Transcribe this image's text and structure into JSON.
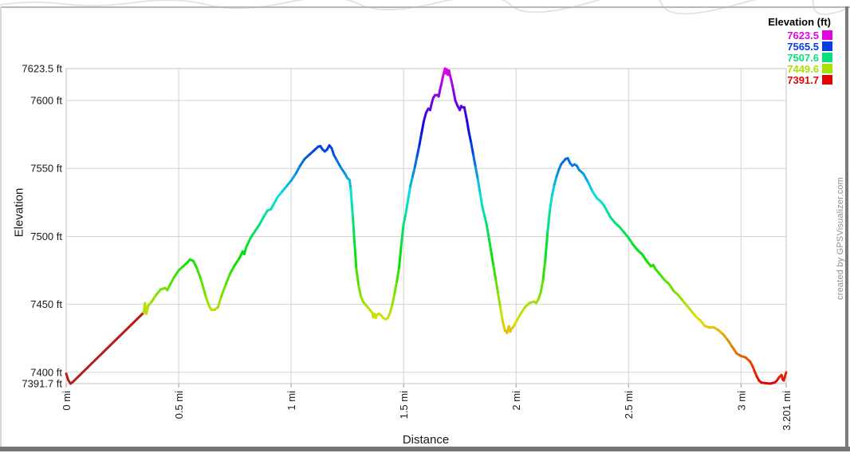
{
  "watermark": "created by GPSVisualizer.com",
  "chart_data": {
    "type": "line",
    "title": "",
    "xlabel": "Distance",
    "ylabel": "Elevation",
    "x_unit": "mi",
    "y_unit": "ft",
    "xlim": [
      0,
      3.201
    ],
    "ylim": [
      7391.7,
      7623.5
    ],
    "grid": true,
    "legend_position": "top-right-outside",
    "x_ticks": [
      {
        "value": 0,
        "label": "0 mi"
      },
      {
        "value": 0.5,
        "label": "0.5 mi"
      },
      {
        "value": 1,
        "label": "1 mi"
      },
      {
        "value": 1.5,
        "label": "1.5 mi"
      },
      {
        "value": 2,
        "label": "2 mi"
      },
      {
        "value": 2.5,
        "label": "2.5 mi"
      },
      {
        "value": 3,
        "label": "3 mi"
      },
      {
        "value": 3.201,
        "label": "3.201 mi"
      }
    ],
    "y_ticks": [
      {
        "value": 7623.5,
        "label": "7623.5 ft"
      },
      {
        "value": 7600,
        "label": "7600 ft"
      },
      {
        "value": 7550,
        "label": "7550 ft"
      },
      {
        "value": 7500,
        "label": "7500 ft"
      },
      {
        "value": 7450,
        "label": "7450 ft"
      },
      {
        "value": 7400,
        "label": "7400 ft"
      },
      {
        "value": 7391.7,
        "label": "7391.7 ft"
      }
    ],
    "legend": {
      "title": "Elevation (ft)",
      "entries": [
        {
          "label": "7623.5",
          "color": "#e006e0"
        },
        {
          "label": "7565.5",
          "color": "#063ce0"
        },
        {
          "label": "7507.6",
          "color": "#06e07b"
        },
        {
          "label": "7449.6",
          "color": "#a9e006"
        },
        {
          "label": "7391.7",
          "color": "#e00606"
        }
      ]
    },
    "color_mode": "rainbow-by-elevation",
    "color_hue_range": [
      0,
      300
    ],
    "fixed_color_until_mi": 0.346,
    "fixed_color": "#b22018",
    "track": [
      [
        0,
        7399
      ],
      [
        0.01,
        7394
      ],
      [
        0.02,
        7391.7
      ],
      [
        0.03,
        7393
      ],
      [
        0.345,
        7444
      ],
      [
        0.35,
        7451
      ],
      [
        0.356,
        7443
      ],
      [
        0.365,
        7449
      ],
      [
        0.38,
        7452
      ],
      [
        0.4,
        7457
      ],
      [
        0.42,
        7461
      ],
      [
        0.44,
        7462
      ],
      [
        0.45,
        7460.5
      ],
      [
        0.46,
        7464
      ],
      [
        0.48,
        7470
      ],
      [
        0.5,
        7475
      ],
      [
        0.52,
        7478
      ],
      [
        0.54,
        7481
      ],
      [
        0.55,
        7483
      ],
      [
        0.565,
        7482
      ],
      [
        0.58,
        7477
      ],
      [
        0.6,
        7468
      ],
      [
        0.62,
        7456
      ],
      [
        0.635,
        7449
      ],
      [
        0.645,
        7446
      ],
      [
        0.66,
        7446
      ],
      [
        0.675,
        7448
      ],
      [
        0.69,
        7456
      ],
      [
        0.71,
        7465
      ],
      [
        0.73,
        7473
      ],
      [
        0.75,
        7479
      ],
      [
        0.77,
        7484
      ],
      [
        0.785,
        7489
      ],
      [
        0.792,
        7487
      ],
      [
        0.8,
        7492
      ],
      [
        0.82,
        7499
      ],
      [
        0.84,
        7504
      ],
      [
        0.86,
        7509
      ],
      [
        0.88,
        7515
      ],
      [
        0.895,
        7519
      ],
      [
        0.91,
        7520
      ],
      [
        0.92,
        7523
      ],
      [
        0.94,
        7529
      ],
      [
        0.96,
        7533
      ],
      [
        0.98,
        7537
      ],
      [
        1,
        7541
      ],
      [
        1.02,
        7546
      ],
      [
        1.04,
        7552
      ],
      [
        1.06,
        7557
      ],
      [
        1.08,
        7560
      ],
      [
        1.1,
        7563
      ],
      [
        1.12,
        7566
      ],
      [
        1.13,
        7566.5
      ],
      [
        1.14,
        7564
      ],
      [
        1.15,
        7562.5
      ],
      [
        1.16,
        7564
      ],
      [
        1.17,
        7567
      ],
      [
        1.18,
        7565
      ],
      [
        1.19,
        7560
      ],
      [
        1.2,
        7557
      ],
      [
        1.22,
        7551
      ],
      [
        1.24,
        7546
      ],
      [
        1.25,
        7543
      ],
      [
        1.26,
        7541.5
      ],
      [
        1.265,
        7535
      ],
      [
        1.27,
        7524
      ],
      [
        1.275,
        7513
      ],
      [
        1.28,
        7500
      ],
      [
        1.285,
        7488
      ],
      [
        1.29,
        7476
      ],
      [
        1.3,
        7464
      ],
      [
        1.31,
        7456
      ],
      [
        1.32,
        7452
      ],
      [
        1.33,
        7450
      ],
      [
        1.34,
        7448
      ],
      [
        1.35,
        7446
      ],
      [
        1.36,
        7444
      ],
      [
        1.365,
        7440.5
      ],
      [
        1.37,
        7443
      ],
      [
        1.376,
        7440
      ],
      [
        1.382,
        7442.5
      ],
      [
        1.39,
        7443
      ],
      [
        1.4,
        7442
      ],
      [
        1.41,
        7440
      ],
      [
        1.42,
        7439
      ],
      [
        1.43,
        7440
      ],
      [
        1.44,
        7444
      ],
      [
        1.45,
        7450
      ],
      [
        1.46,
        7458
      ],
      [
        1.47,
        7467
      ],
      [
        1.48,
        7477
      ],
      [
        1.49,
        7494
      ],
      [
        1.5,
        7509
      ],
      [
        1.51,
        7517
      ],
      [
        1.52,
        7527
      ],
      [
        1.53,
        7537
      ],
      [
        1.54,
        7544
      ],
      [
        1.55,
        7551
      ],
      [
        1.56,
        7559
      ],
      [
        1.57,
        7567
      ],
      [
        1.58,
        7576
      ],
      [
        1.59,
        7585
      ],
      [
        1.6,
        7591
      ],
      [
        1.61,
        7594
      ],
      [
        1.618,
        7593
      ],
      [
        1.625,
        7598
      ],
      [
        1.632,
        7602
      ],
      [
        1.64,
        7604
      ],
      [
        1.65,
        7604
      ],
      [
        1.656,
        7603
      ],
      [
        1.662,
        7608
      ],
      [
        1.668,
        7612
      ],
      [
        1.674,
        7617
      ],
      [
        1.68,
        7621
      ],
      [
        1.684,
        7623.5
      ],
      [
        1.688,
        7620
      ],
      [
        1.692,
        7623
      ],
      [
        1.697,
        7619
      ],
      [
        1.702,
        7622
      ],
      [
        1.707,
        7618
      ],
      [
        1.712,
        7615
      ],
      [
        1.717,
        7611
      ],
      [
        1.722,
        7607
      ],
      [
        1.73,
        7600
      ],
      [
        1.74,
        7596
      ],
      [
        1.75,
        7593
      ],
      [
        1.756,
        7596
      ],
      [
        1.762,
        7595
      ],
      [
        1.77,
        7595
      ],
      [
        1.776,
        7590
      ],
      [
        1.782,
        7585
      ],
      [
        1.79,
        7577
      ],
      [
        1.8,
        7569
      ],
      [
        1.81,
        7560
      ],
      [
        1.82,
        7551
      ],
      [
        1.83,
        7542
      ],
      [
        1.84,
        7532
      ],
      [
        1.85,
        7522
      ],
      [
        1.86,
        7515
      ],
      [
        1.87,
        7508
      ],
      [
        1.88,
        7498
      ],
      [
        1.89,
        7488
      ],
      [
        1.9,
        7478
      ],
      [
        1.91,
        7468
      ],
      [
        1.92,
        7458
      ],
      [
        1.93,
        7448
      ],
      [
        1.94,
        7438
      ],
      [
        1.95,
        7431
      ],
      [
        1.96,
        7429
      ],
      [
        1.968,
        7434
      ],
      [
        1.974,
        7430
      ],
      [
        1.98,
        7432
      ],
      [
        1.99,
        7434
      ],
      [
        2,
        7437
      ],
      [
        2.02,
        7443
      ],
      [
        2.04,
        7448
      ],
      [
        2.06,
        7451
      ],
      [
        2.08,
        7452
      ],
      [
        2.09,
        7451
      ],
      [
        2.1,
        7454
      ],
      [
        2.11,
        7459
      ],
      [
        2.12,
        7468
      ],
      [
        2.13,
        7483
      ],
      [
        2.14,
        7503
      ],
      [
        2.15,
        7519
      ],
      [
        2.16,
        7530
      ],
      [
        2.17,
        7538
      ],
      [
        2.18,
        7544
      ],
      [
        2.19,
        7549
      ],
      [
        2.2,
        7553
      ],
      [
        2.21,
        7555
      ],
      [
        2.22,
        7557
      ],
      [
        2.23,
        7557.5
      ],
      [
        2.24,
        7554
      ],
      [
        2.25,
        7552
      ],
      [
        2.26,
        7553
      ],
      [
        2.27,
        7552
      ],
      [
        2.28,
        7549
      ],
      [
        2.3,
        7546
      ],
      [
        2.32,
        7540
      ],
      [
        2.34,
        7533
      ],
      [
        2.36,
        7528
      ],
      [
        2.375,
        7526
      ],
      [
        2.39,
        7523
      ],
      [
        2.4,
        7520
      ],
      [
        2.42,
        7514
      ],
      [
        2.44,
        7510
      ],
      [
        2.46,
        7507
      ],
      [
        2.48,
        7503
      ],
      [
        2.5,
        7499
      ],
      [
        2.52,
        7494
      ],
      [
        2.54,
        7490
      ],
      [
        2.56,
        7487
      ],
      [
        2.58,
        7482
      ],
      [
        2.6,
        7478
      ],
      [
        2.61,
        7479
      ],
      [
        2.62,
        7476
      ],
      [
        2.64,
        7472
      ],
      [
        2.66,
        7468
      ],
      [
        2.68,
        7465
      ],
      [
        2.7,
        7460
      ],
      [
        2.72,
        7457
      ],
      [
        2.74,
        7453
      ],
      [
        2.76,
        7449
      ],
      [
        2.78,
        7445
      ],
      [
        2.8,
        7441
      ],
      [
        2.82,
        7438
      ],
      [
        2.84,
        7434
      ],
      [
        2.86,
        7433
      ],
      [
        2.88,
        7433
      ],
      [
        2.9,
        7431
      ],
      [
        2.92,
        7428
      ],
      [
        2.94,
        7424
      ],
      [
        2.96,
        7419
      ],
      [
        2.98,
        7414
      ],
      [
        3,
        7412
      ],
      [
        3.02,
        7411
      ],
      [
        3.04,
        7408
      ],
      [
        3.05,
        7405
      ],
      [
        3.06,
        7401
      ],
      [
        3.07,
        7397
      ],
      [
        3.08,
        7394
      ],
      [
        3.09,
        7392.5
      ],
      [
        3.11,
        7392
      ],
      [
        3.13,
        7391.7
      ],
      [
        3.15,
        7392.5
      ],
      [
        3.16,
        7394
      ],
      [
        3.17,
        7396.5
      ],
      [
        3.18,
        7398
      ],
      [
        3.185,
        7395
      ],
      [
        3.19,
        7394
      ],
      [
        3.195,
        7397
      ],
      [
        3.201,
        7400
      ]
    ]
  }
}
